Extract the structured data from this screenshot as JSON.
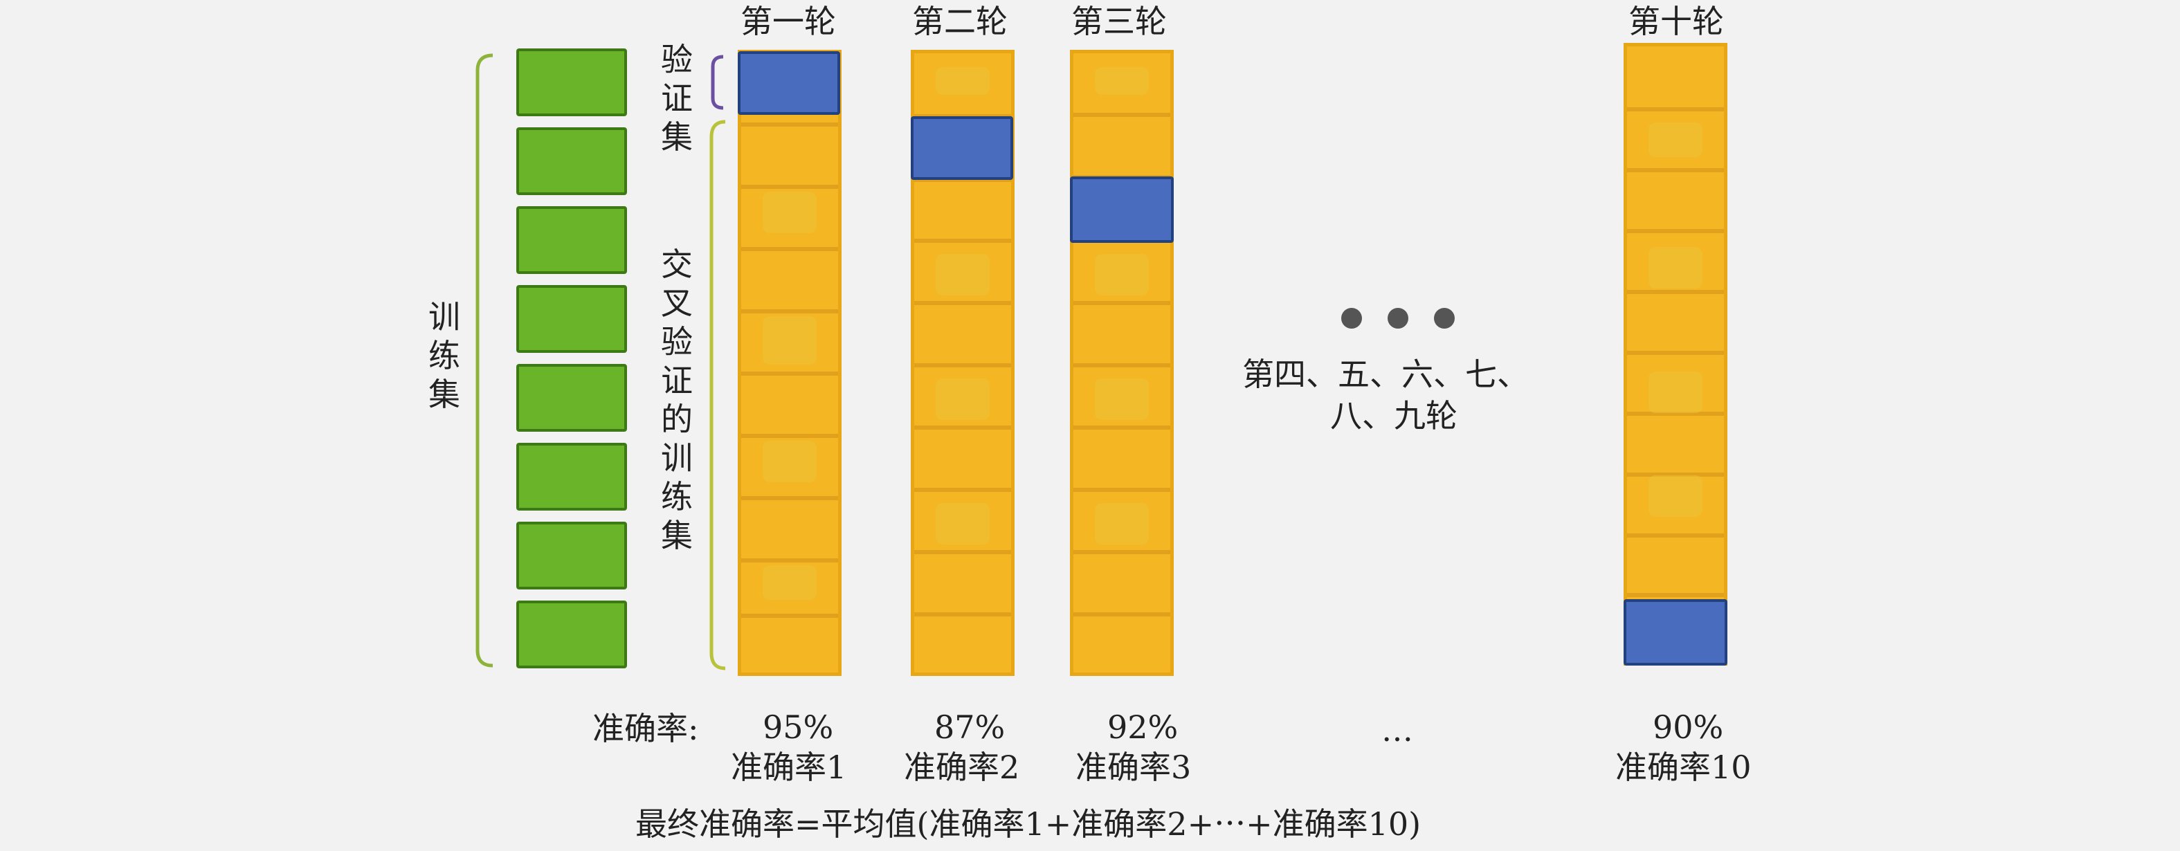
{
  "rounds": {
    "r1": "第一轮",
    "r2": "第二轮",
    "r3": "第三轮",
    "r10": "第十轮"
  },
  "labels": {
    "train_set": "训练集",
    "val_set": "验证集",
    "cv_train_set": "交叉验证的训练集",
    "middle_rounds_line1": "第四、五、六、七、",
    "middle_rounds_line2": "八、九轮",
    "ellipsis_mid": "…",
    "accuracy_label": "准确率:"
  },
  "accuracy": {
    "v1": "95%",
    "v2": "87%",
    "v3": "92%",
    "v10": "90%",
    "n1": "准确率1",
    "n2": "准确率2",
    "n3": "准确率3",
    "n10": "准确率10"
  },
  "formula": "最终准确率=平均值(准确率1+准确率2+⋯+准确率10)",
  "colors": {
    "train_block": "#6ab42a",
    "fold_yellow": "#f5b624",
    "validation_blue": "#4a6cbf",
    "brace_green": "#8db33a",
    "brace_purple": "#6b4fa0",
    "background": "#f2f2f2"
  }
}
